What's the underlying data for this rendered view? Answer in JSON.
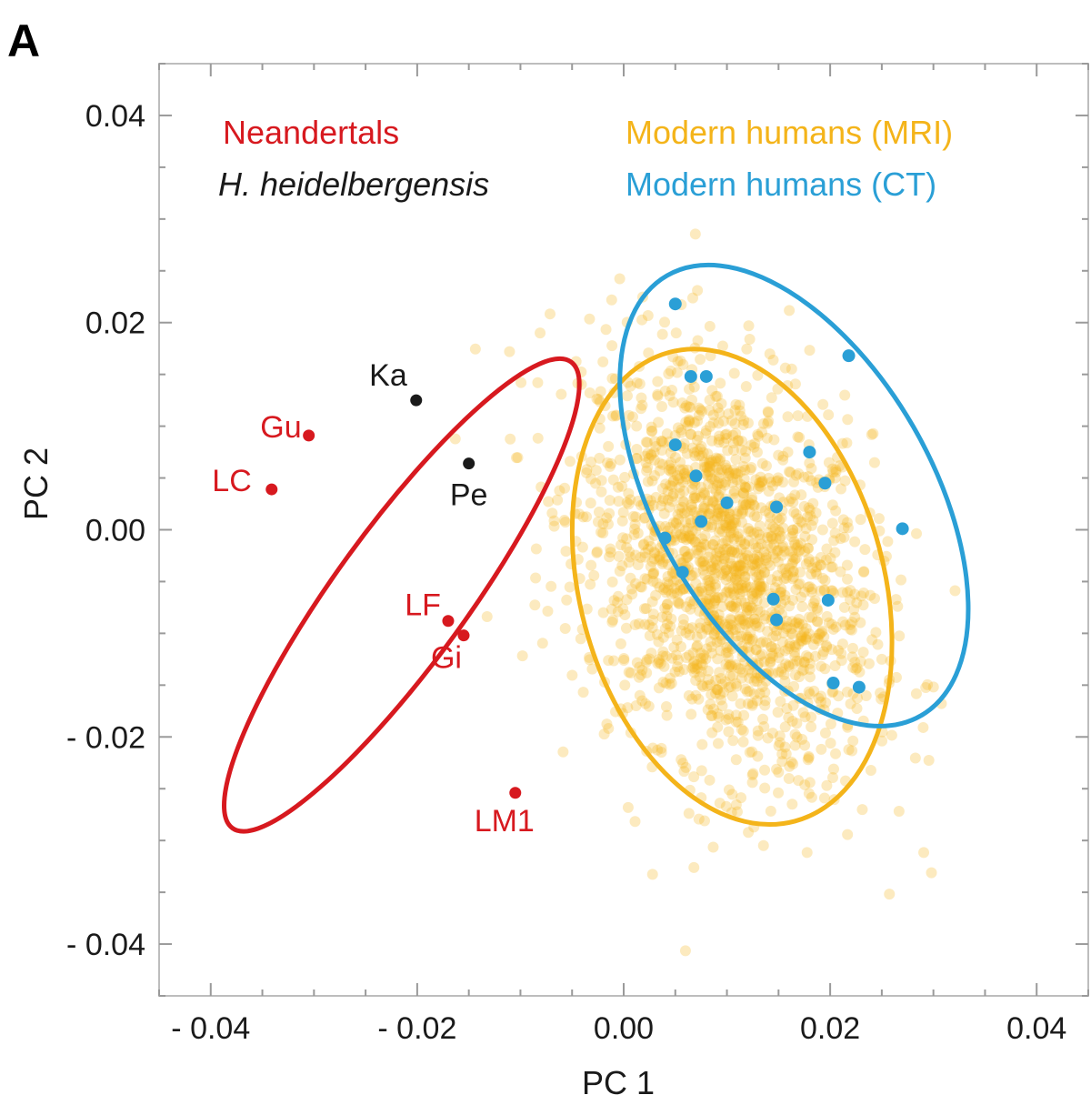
{
  "chart_data": {
    "type": "scatter",
    "panel_label": "A",
    "xlabel": "PC 1",
    "ylabel": "PC 2",
    "xlim": [
      -0.045,
      0.045
    ],
    "ylim": [
      -0.045,
      0.045
    ],
    "x_ticks": [
      -0.04,
      -0.02,
      0.0,
      0.02,
      0.04
    ],
    "y_ticks": [
      -0.04,
      -0.02,
      0.0,
      0.02,
      0.04
    ],
    "x_tick_labels": [
      "- 0.04",
      "- 0.02",
      "0.00",
      "0.02",
      "0.04"
    ],
    "y_tick_labels": [
      "- 0.04",
      "- 0.02",
      "0.00",
      "0.02",
      "0.04"
    ],
    "grid": false,
    "legend": [
      "Neandertals",
      "H. heidelbergensis",
      "Modern humans (MRI)",
      "Modern humans (CT)"
    ],
    "colors": {
      "neandertals": "#d7191f",
      "heidelbergensis": "#1a1a1a",
      "mri": "#f4b41a",
      "ct": "#2a9fd6"
    },
    "series": [
      {
        "name": "Neandertals",
        "points": [
          {
            "label": "Gu",
            "x": -0.0305,
            "y": 0.0091
          },
          {
            "label": "LC",
            "x": -0.0341,
            "y": 0.0039
          },
          {
            "label": "LF",
            "x": -0.017,
            "y": -0.0088
          },
          {
            "label": "Gi",
            "x": -0.0155,
            "y": -0.0102
          },
          {
            "label": "LM1",
            "x": -0.0105,
            "y": -0.0254
          }
        ],
        "ellipse": {
          "cx": -0.0215,
          "cy": -0.0063,
          "rx": 0.0279,
          "ry": 0.0064,
          "angle_deg": -54
        }
      },
      {
        "name": "H. heidelbergensis",
        "points": [
          {
            "label": "Ka",
            "x": -0.0201,
            "y": 0.0125
          },
          {
            "label": "Pe",
            "x": -0.015,
            "y": 0.0064
          }
        ]
      },
      {
        "name": "Modern humans (MRI)",
        "cloud": {
          "cx": 0.01,
          "cy": -0.004,
          "sx": 0.007,
          "sy": 0.01,
          "rho": -0.3,
          "n": 1800
        },
        "ellipse": {
          "cx": 0.0105,
          "cy": -0.0055,
          "rx": 0.0235,
          "ry": 0.0147,
          "angle_deg": 75
        }
      },
      {
        "name": "Modern humans (CT)",
        "points": [
          {
            "x": 0.005,
            "y": 0.0218
          },
          {
            "x": 0.0218,
            "y": 0.0168
          },
          {
            "x": 0.0065,
            "y": 0.0148
          },
          {
            "x": 0.008,
            "y": 0.0148
          },
          {
            "x": 0.005,
            "y": 0.0082
          },
          {
            "x": 0.018,
            "y": 0.0075
          },
          {
            "x": 0.007,
            "y": 0.0052
          },
          {
            "x": 0.0195,
            "y": 0.0045
          },
          {
            "x": 0.01,
            "y": 0.0026
          },
          {
            "x": 0.0148,
            "y": 0.0022
          },
          {
            "x": 0.0075,
            "y": 0.0008
          },
          {
            "x": 0.027,
            "y": 0.0001
          },
          {
            "x": 0.004,
            "y": -0.0008
          },
          {
            "x": 0.0057,
            "y": -0.0041
          },
          {
            "x": 0.0145,
            "y": -0.0067
          },
          {
            "x": 0.0198,
            "y": -0.0068
          },
          {
            "x": 0.0148,
            "y": -0.0087
          },
          {
            "x": 0.0203,
            "y": -0.0148
          },
          {
            "x": 0.0228,
            "y": -0.0152
          }
        ],
        "ellipse": {
          "cx": 0.0165,
          "cy": 0.0033,
          "rx": 0.0246,
          "ry": 0.0133,
          "angle_deg": 60
        }
      }
    ]
  }
}
